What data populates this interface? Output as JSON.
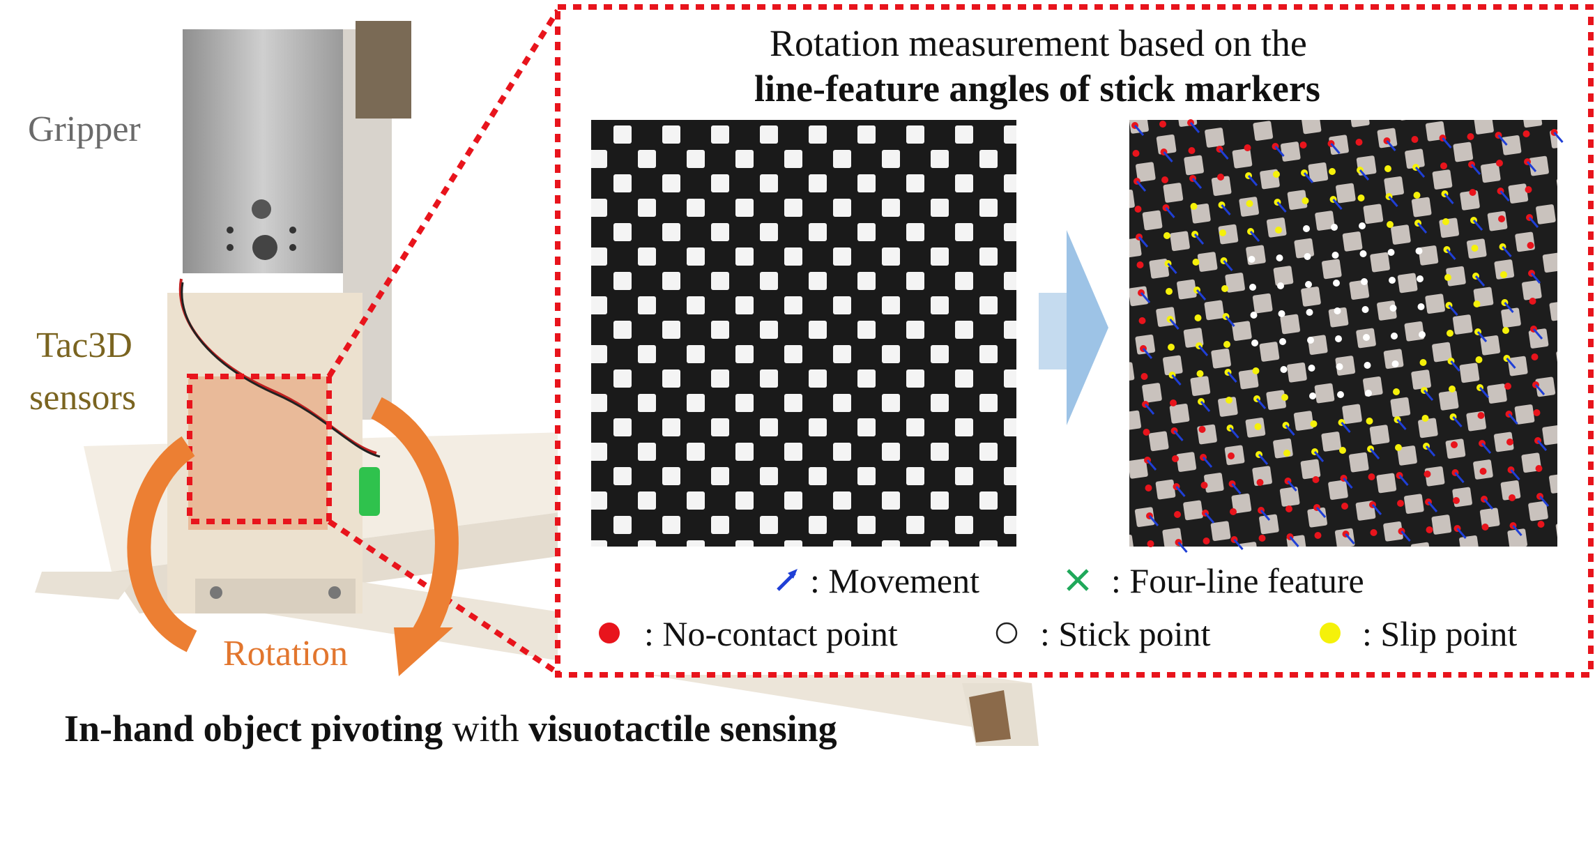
{
  "labels": {
    "gripper": "Gripper",
    "tac3d_line1": "Tac3D",
    "tac3d_line2": "sensors",
    "rotation": "Rotation"
  },
  "title": {
    "line1": "Rotation measurement based on the",
    "line2": "line-feature angles of stick markers"
  },
  "caption": {
    "part1": "In-hand object pivoting",
    "part2": " with ",
    "part3": "visuotactile sensing"
  },
  "legend": {
    "movement": ": Movement",
    "four_line": ": Four-line feature",
    "no_contact": ": No-contact point",
    "stick": ": Stick point",
    "slip": ": Slip point"
  },
  "colors": {
    "dashed_box": "#e8141c",
    "rotation_arrow": "#ec7f33",
    "flow_arrow": "#9dc3e6",
    "movement": "#1f3fd6",
    "four_line": "#1fa85a",
    "no_contact": "#e8141c",
    "stick": "#ffffff",
    "slip": "#f5f10a"
  },
  "icons": {
    "movement": "blue-arrow-icon",
    "four_line": "green-cross-icon",
    "no_contact": "red-dot-icon",
    "stick": "white-dot-icon",
    "slip": "yellow-dot-icon"
  }
}
